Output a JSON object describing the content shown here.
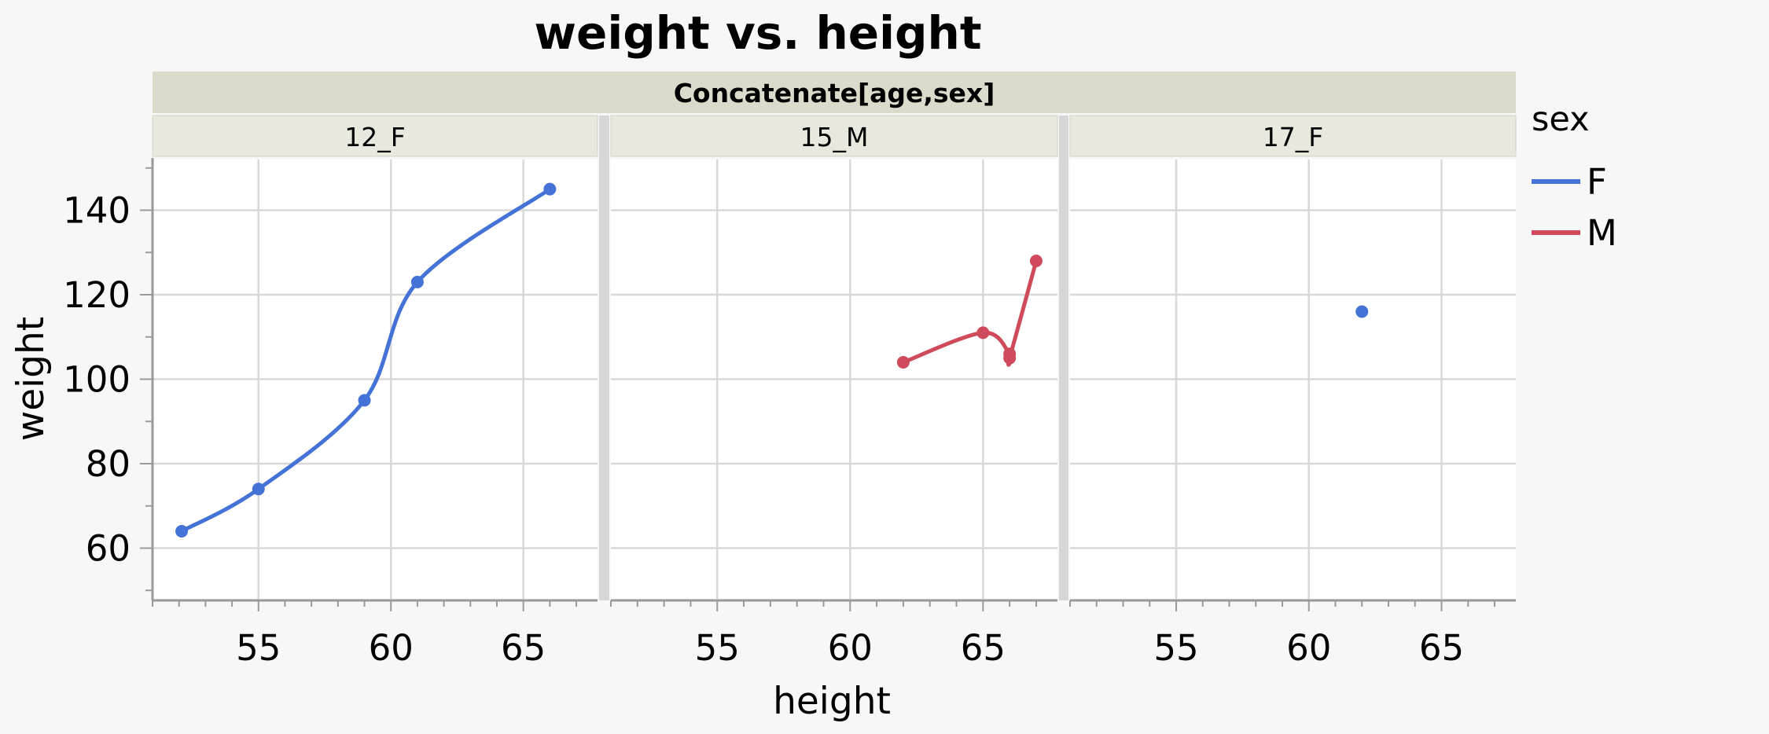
{
  "chart_data": {
    "type": "scatter",
    "title": "weight vs. height",
    "group_by_label": "Concatenate[age,sex]",
    "xlabel": "height",
    "ylabel": "weight",
    "xlim": [
      51.0,
      67.8
    ],
    "ylim": [
      48.0,
      152.0
    ],
    "x_ticks": [
      55,
      60,
      65
    ],
    "y_ticks": [
      60,
      80,
      100,
      120,
      140
    ],
    "grid": true,
    "legend": {
      "title": "sex",
      "position": "right",
      "entries": [
        {
          "label": "F",
          "color": "#4472d6"
        },
        {
          "label": "M",
          "color": "#cf4a5a"
        }
      ]
    },
    "panels": [
      {
        "label": "12_F",
        "series": [
          {
            "name": "F",
            "color": "#4472d6",
            "x": [
              52.1,
              55,
              59,
              61,
              66
            ],
            "y": [
              64,
              74,
              95,
              123,
              145
            ],
            "smoother": true
          }
        ]
      },
      {
        "label": "15_M",
        "series": [
          {
            "name": "M",
            "color": "#cf4a5a",
            "x": [
              62,
              65,
              66,
              66,
              67
            ],
            "y": [
              104,
              111,
              106,
              105,
              128
            ],
            "smoother": true
          }
        ]
      },
      {
        "label": "17_F",
        "series": [
          {
            "name": "F",
            "color": "#4472d6",
            "x": [
              62
            ],
            "y": [
              116
            ],
            "smoother": false
          }
        ]
      }
    ]
  }
}
